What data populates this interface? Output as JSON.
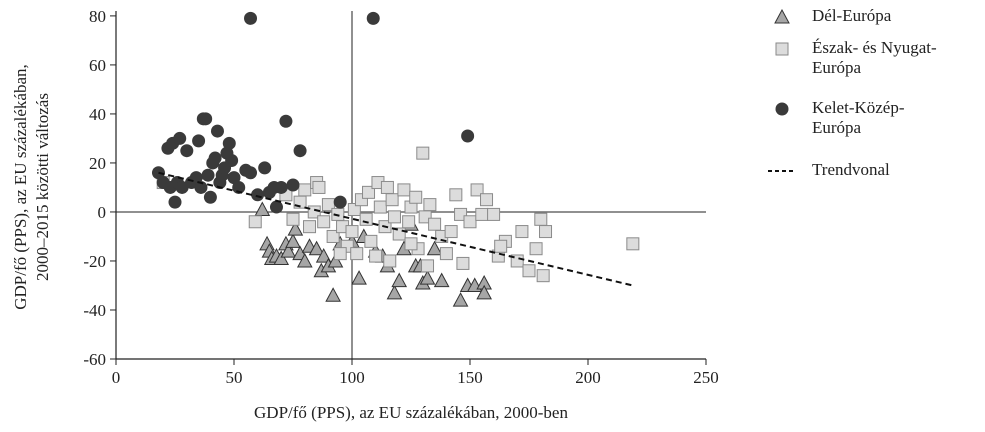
{
  "chart_data": {
    "type": "scatter",
    "xlabel": "GDP/fő (PPS), az EU százalékában, 2000-ben",
    "ylabel": [
      "GDP/fő (PPS), az EU százalékában,",
      "2000–2015 közötti változás"
    ],
    "xlim": [
      0,
      250
    ],
    "ylim": [
      -60,
      82
    ],
    "xticks": [
      0,
      50,
      100,
      150,
      200,
      250
    ],
    "yticks": [
      -60,
      -40,
      -20,
      0,
      20,
      40,
      60,
      80
    ],
    "reference_lines": {
      "x": 100,
      "y": 0
    },
    "series": [
      {
        "name": "Dél-Európa",
        "marker": "triangle",
        "color": "#a6a6a6",
        "x": [
          62,
          64,
          65,
          66,
          68,
          70,
          72,
          73,
          75,
          76,
          78,
          80,
          82,
          85,
          87,
          88,
          90,
          92,
          93,
          95,
          100,
          103,
          105,
          110,
          113,
          115,
          118,
          120,
          122,
          127,
          129,
          130,
          132,
          138,
          146,
          149,
          152,
          156,
          156,
          125,
          135
        ],
        "values": [
          1,
          -13,
          -16,
          -19,
          -18,
          -19,
          -13,
          -16,
          -12,
          -7,
          -17,
          -20,
          -14,
          -15,
          -24,
          -18,
          -22,
          -34,
          -20,
          -13,
          -12,
          -27,
          -10,
          -16,
          -18,
          -22,
          -33,
          -28,
          -15,
          -22,
          -22,
          -29,
          -27,
          -28,
          -36,
          -30,
          -30,
          -29,
          -33,
          -5,
          -15
        ]
      },
      {
        "name": "Észak- és Nyugat-Európa",
        "marker": "square",
        "color": "#dcdcdc",
        "x": [
          20,
          59,
          72,
          75,
          78,
          80,
          82,
          84,
          85,
          86,
          88,
          90,
          92,
          94,
          96,
          98,
          100,
          101,
          102,
          104,
          106,
          107,
          108,
          110,
          111,
          112,
          114,
          115,
          116,
          117,
          118,
          120,
          122,
          124,
          125,
          127,
          128,
          130,
          131,
          132,
          133,
          135,
          138,
          140,
          142,
          144,
          146,
          147,
          150,
          153,
          155,
          157,
          160,
          162,
          165,
          170,
          172,
          175,
          178,
          180,
          181,
          182,
          219,
          163,
          125,
          95
        ],
        "values": [
          12,
          -4,
          7,
          -3,
          4,
          9,
          -6,
          0,
          12,
          10,
          -4,
          3,
          -10,
          -1,
          -6,
          -14,
          -8,
          1,
          -17,
          5,
          -3,
          8,
          -12,
          -18,
          12,
          2,
          -6,
          10,
          -20,
          5,
          -2,
          -9,
          9,
          -4,
          2,
          6,
          -15,
          24,
          -2,
          -22,
          3,
          -5,
          -10,
          -17,
          -8,
          7,
          -1,
          -21,
          -4,
          9,
          -1,
          5,
          -1,
          -18,
          -12,
          -20,
          -8,
          -24,
          -15,
          -3,
          -26,
          -8,
          -13,
          -14,
          -13,
          -17
        ]
      },
      {
        "name": "Kelet-Közép-Európa",
        "marker": "circle",
        "color": "#3a3a3a",
        "x": [
          57,
          109,
          18,
          20,
          22,
          23,
          24,
          25,
          26,
          27,
          28,
          30,
          32,
          34,
          35,
          36,
          37,
          38,
          39,
          40,
          41,
          42,
          43,
          44,
          45,
          46,
          47,
          48,
          49,
          50,
          52,
          55,
          57,
          60,
          63,
          65,
          67,
          70,
          72,
          75,
          78,
          95,
          149,
          68
        ],
        "values": [
          79,
          79,
          16,
          12,
          26,
          10,
          28,
          4,
          12,
          30,
          10,
          25,
          12,
          14,
          29,
          10,
          38,
          38,
          15,
          6,
          20,
          22,
          33,
          12,
          15,
          18,
          24,
          28,
          21,
          14,
          10,
          17,
          16,
          7,
          18,
          8,
          10,
          10,
          37,
          11,
          25,
          4,
          31,
          2
        ]
      },
      {
        "name": "Trendvonal",
        "marker": "dashed-line",
        "color": "#111111",
        "x": [
          18,
          219
        ],
        "values": [
          16,
          -30
        ]
      }
    ]
  }
}
